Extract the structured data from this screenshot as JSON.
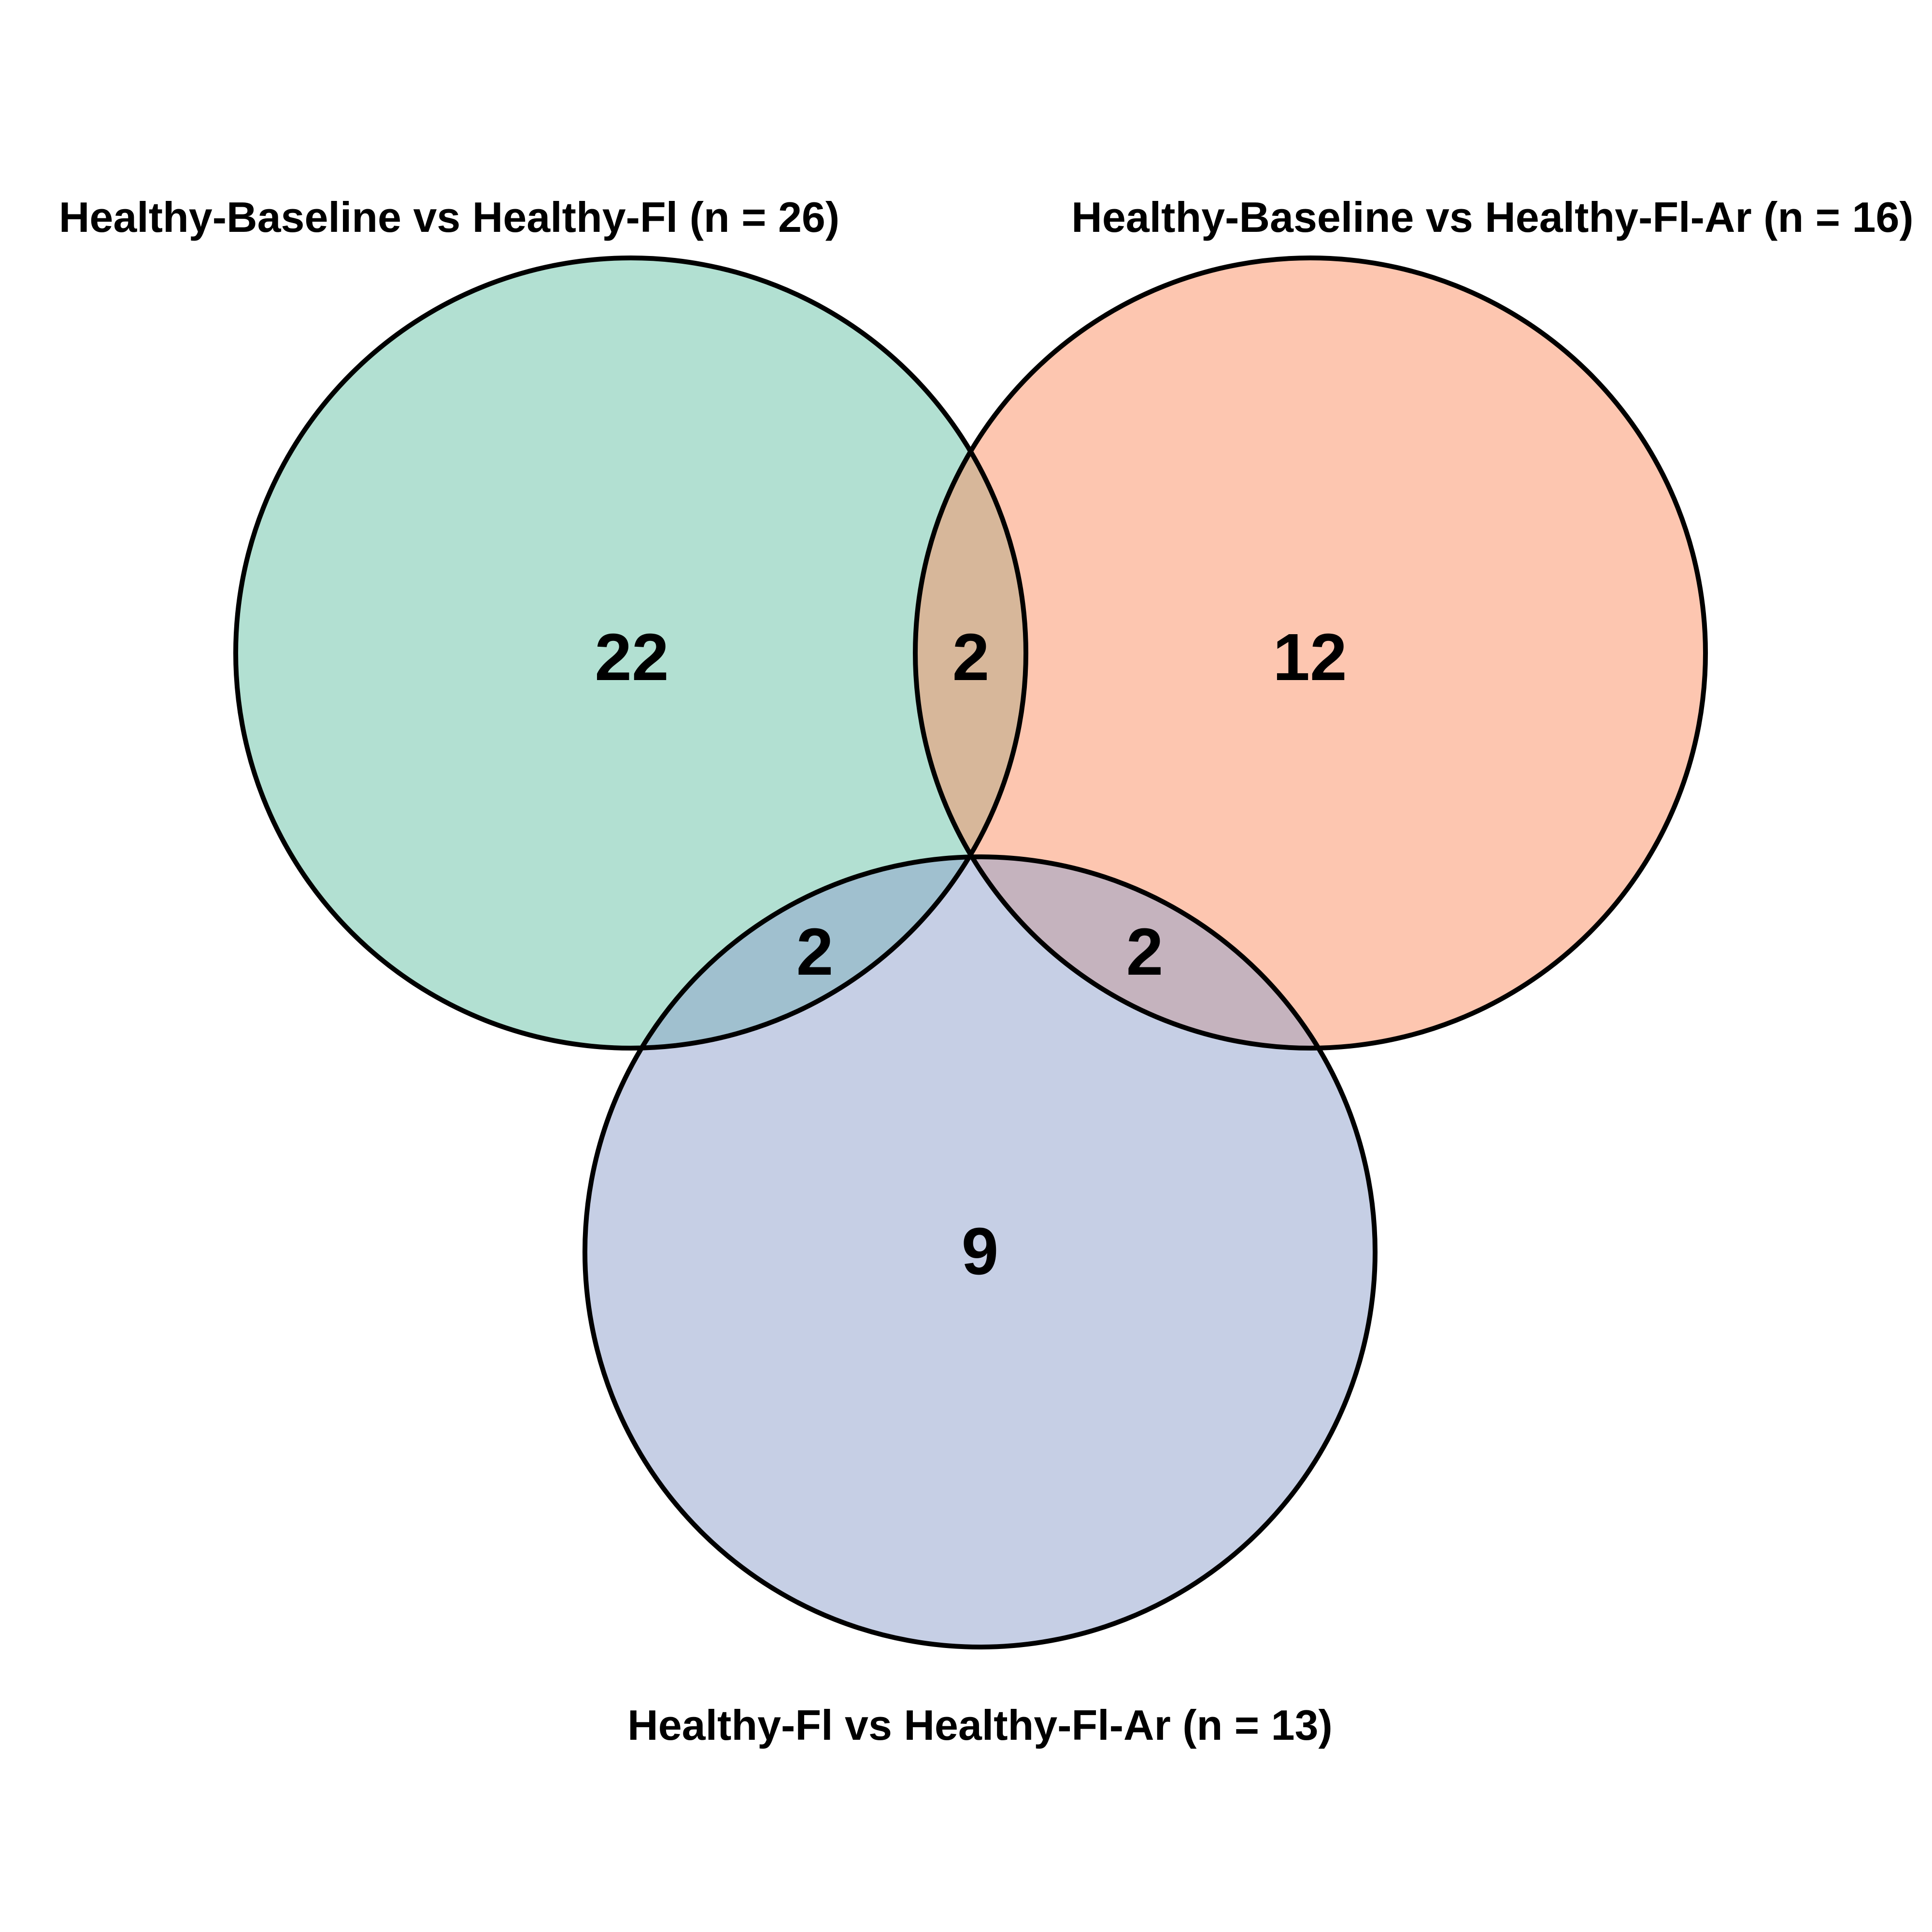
{
  "diagram": {
    "type": "venn",
    "sets": [
      {
        "id": "A",
        "label": "Healthy-Baseline vs Healthy-Fl (n = 26)",
        "size": 26,
        "color": "#66c2a5"
      },
      {
        "id": "B",
        "label": "Healthy-Baseline vs Healthy-Fl-Ar (n = 16)",
        "size": 16,
        "color": "#fc8d62"
      },
      {
        "id": "C",
        "label": "Healthy-Fl vs Healthy-Fl-Ar (n = 13)",
        "size": 13,
        "color": "#8da0cb"
      }
    ],
    "regions": [
      {
        "sets": [
          "A"
        ],
        "count": "22"
      },
      {
        "sets": [
          "A",
          "B"
        ],
        "count": "2"
      },
      {
        "sets": [
          "B"
        ],
        "count": "12"
      },
      {
        "sets": [
          "A",
          "C"
        ],
        "count": "2"
      },
      {
        "sets": [
          "B",
          "C"
        ],
        "count": "2"
      },
      {
        "sets": [
          "C"
        ],
        "count": "9"
      }
    ]
  }
}
